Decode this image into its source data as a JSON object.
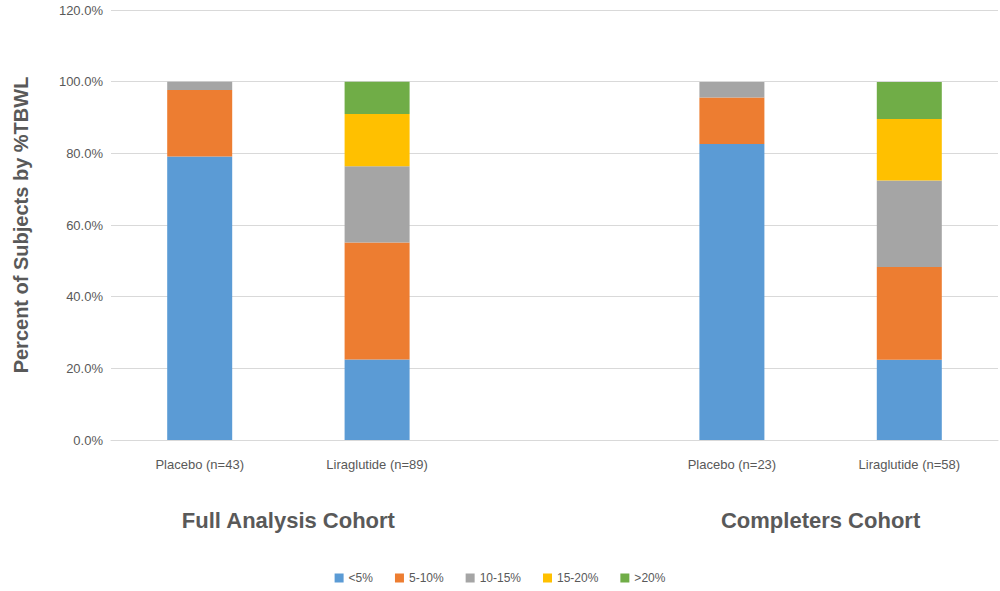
{
  "chart_data": {
    "type": "bar",
    "stacked": true,
    "y_label": "Percent of Subjects by %TBWL",
    "categories": [
      "Placebo (n=43)",
      "Liraglutide (n=89)",
      null,
      "Placebo (n=23)",
      "Liraglutide (n=58)"
    ],
    "group_labels": [
      "Full Analysis Cohort",
      "Completers Cohort"
    ],
    "series": [
      {
        "name": "<5%",
        "color": "#5b9bd5",
        "values": [
          79.1,
          22.5,
          null,
          82.6,
          22.4
        ]
      },
      {
        "name": "5-10%",
        "color": "#ed7d31",
        "values": [
          18.6,
          32.6,
          null,
          13.0,
          25.9
        ]
      },
      {
        "name": "10-15%",
        "color": "#a5a5a5",
        "values": [
          2.3,
          21.3,
          null,
          4.3,
          24.1
        ]
      },
      {
        "name": "15-20%",
        "color": "#ffc000",
        "values": [
          0,
          14.6,
          null,
          0,
          17.2
        ]
      },
      {
        "name": ">20%",
        "color": "#70ad47",
        "values": [
          0,
          9.0,
          null,
          0,
          10.3
        ]
      }
    ],
    "ylim": [
      0,
      120
    ],
    "yticks": [
      {
        "value": 0,
        "label": "0.0%"
      },
      {
        "value": 20,
        "label": "20.0%"
      },
      {
        "value": 40,
        "label": "40.0%"
      },
      {
        "value": 60,
        "label": "60.0%"
      },
      {
        "value": 80,
        "label": "80.0%"
      },
      {
        "value": 100,
        "label": "100.0%"
      },
      {
        "value": 120,
        "label": "120.0%"
      }
    ],
    "grid": true,
    "legend": "bottom"
  }
}
